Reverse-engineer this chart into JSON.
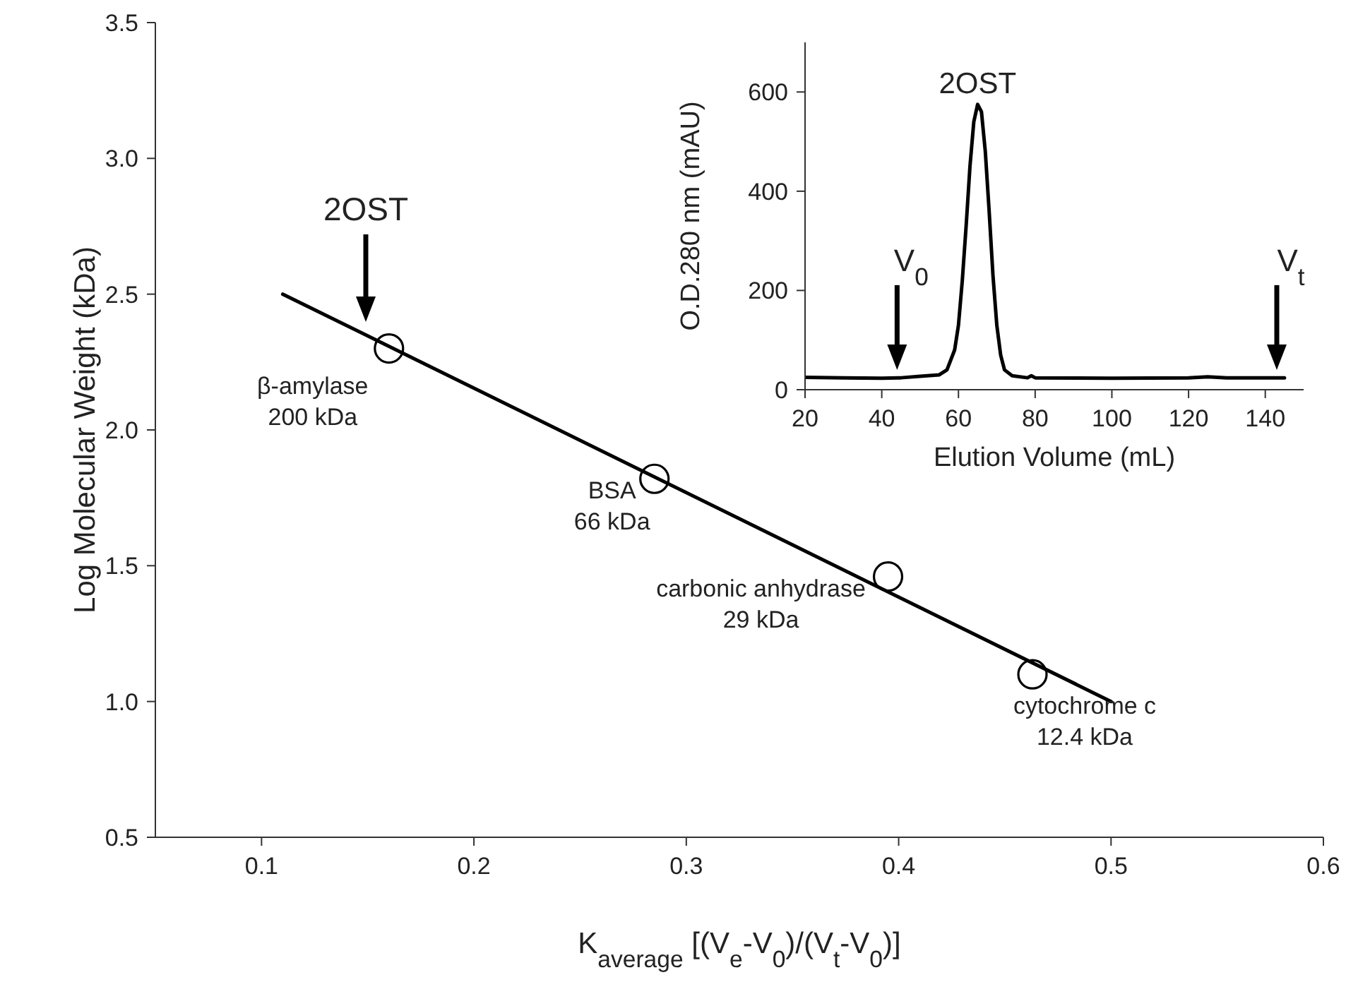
{
  "chart_data": [
    {
      "type": "scatter",
      "xlabel": "K$_{average}$ [(V$_{e}$-V$_{0}$)/(V$_{t}$-V$_{0}$)]",
      "ylabel": "Log Molecular Weight (kDa)",
      "xlim": [
        0.05,
        0.6
      ],
      "ylim": [
        0.5,
        3.5
      ],
      "xticks": [
        0.1,
        0.2,
        0.3,
        0.4,
        0.5,
        0.6
      ],
      "yticks": [
        {
          "value": 0.5,
          "label": "0.5"
        },
        {
          "value": 1,
          "label": "1.0"
        },
        {
          "value": 1.5,
          "label": "1.5"
        },
        {
          "value": 2,
          "label": "2.0"
        },
        {
          "value": 2.5,
          "label": "2.5"
        },
        {
          "value": 3,
          "label": "3.0"
        },
        {
          "value": 3.5,
          "label": "3.5"
        }
      ],
      "series": [
        {
          "type": "scatter",
          "marker": "circle",
          "color": "#000000",
          "x": [
            0.16,
            0.285,
            0.395,
            0.463
          ],
          "values": [
            2.3,
            1.82,
            1.46,
            1.1
          ]
        },
        {
          "type": "line",
          "color": "#000000",
          "x": [
            0.11,
            0.5
          ],
          "values": [
            2.5,
            1.0
          ]
        }
      ],
      "annotations": [
        "2OST",
        {
          "text": "β-amylase\n200 kDa",
          "x": 0.16,
          "y": 2.3
        },
        {
          "text": "BSA\n66 kDa",
          "x": 0.285,
          "y": 1.82
        },
        {
          "text": "carbonic anhydrase\n29 kDa",
          "x": 0.395,
          "y": 1.46
        },
        {
          "text": "cytochrome c\n12.4 kDa",
          "x": 0.463,
          "y": 1.1
        }
      ]
    },
    {
      "type": "line",
      "xlabel": "Elution Volume (mL)",
      "ylabel": "O.D.280 nm (mAU)",
      "xlim": [
        20,
        150
      ],
      "ylim": [
        0,
        700
      ],
      "xticks": [
        20,
        40,
        60,
        80,
        100,
        120,
        140
      ],
      "yticks": [
        0,
        200,
        400,
        600
      ],
      "series": [
        {
          "color": "#000000",
          "x": [
            20,
            30,
            40,
            45,
            50,
            55,
            57,
            59,
            60,
            61,
            62,
            63,
            64,
            65,
            66,
            67,
            68,
            69,
            70,
            71,
            72,
            74,
            78,
            79,
            80,
            100,
            120,
            125,
            130,
            145
          ],
          "values": [
            25,
            24,
            23,
            24,
            27,
            30,
            40,
            80,
            130,
            220,
            330,
            450,
            540,
            575,
            560,
            480,
            360,
            230,
            130,
            70,
            40,
            28,
            24,
            28,
            24,
            23,
            24,
            26,
            24,
            24
          ]
        }
      ],
      "annotations": [
        {
          "text": "2OST",
          "x": 65,
          "y": 575
        },
        {
          "text": "V$_{0}$",
          "x": 44,
          "y": 40
        },
        {
          "text": "V$_{t}$",
          "x": 143,
          "y": 40
        }
      ]
    }
  ]
}
